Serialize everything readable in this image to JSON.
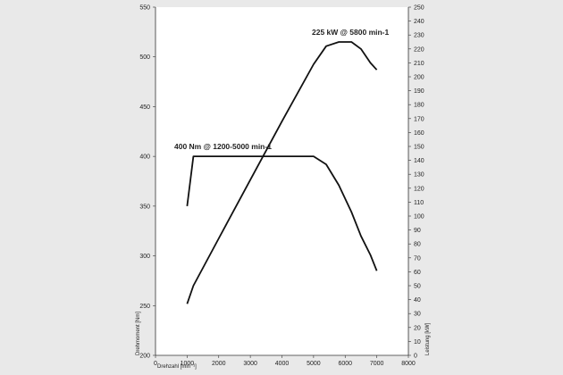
{
  "chart_data": {
    "type": "line",
    "title": "",
    "xlabel": "Drehzahl [min⁻¹]",
    "ylabel_left": "Drehmoment [Nm]",
    "ylabel_right": "Leistung [kW]",
    "xlim": [
      0,
      8000
    ],
    "xticks": [
      0,
      1000,
      2000,
      3000,
      4000,
      5000,
      6000,
      7000,
      8000
    ],
    "ylim_left": [
      200,
      550
    ],
    "yticks_left": [
      200,
      250,
      300,
      350,
      400,
      450,
      500,
      550
    ],
    "ylim_right": [
      0,
      250
    ],
    "yticks_right": [
      0,
      10,
      20,
      30,
      40,
      50,
      60,
      70,
      80,
      90,
      100,
      110,
      120,
      130,
      140,
      150,
      160,
      170,
      180,
      190,
      200,
      210,
      220,
      230,
      240,
      250
    ],
    "grid": false,
    "legend": "none",
    "series": [
      {
        "axis": "left",
        "color": "#111111",
        "points": [
          [
            1000,
            350
          ],
          [
            1200,
            400
          ],
          [
            5000,
            400
          ],
          [
            5400,
            392
          ],
          [
            5800,
            371
          ],
          [
            6200,
            344
          ],
          [
            6500,
            320
          ],
          [
            6800,
            301
          ],
          [
            7000,
            285
          ]
        ]
      },
      {
        "axis": "right",
        "color": "#111111",
        "points": [
          [
            1000,
            37
          ],
          [
            1200,
            50
          ],
          [
            2000,
            84
          ],
          [
            3000,
            126
          ],
          [
            4000,
            168
          ],
          [
            5000,
            209
          ],
          [
            5400,
            222
          ],
          [
            5800,
            225
          ],
          [
            6200,
            225
          ],
          [
            6500,
            220
          ],
          [
            6800,
            210
          ],
          [
            7000,
            205
          ]
        ]
      }
    ],
    "annotations": [
      {
        "text": "225 kW @ 5800 min-1"
      },
      {
        "text": "400 Nm @ 1200-5000 min-1"
      }
    ]
  }
}
